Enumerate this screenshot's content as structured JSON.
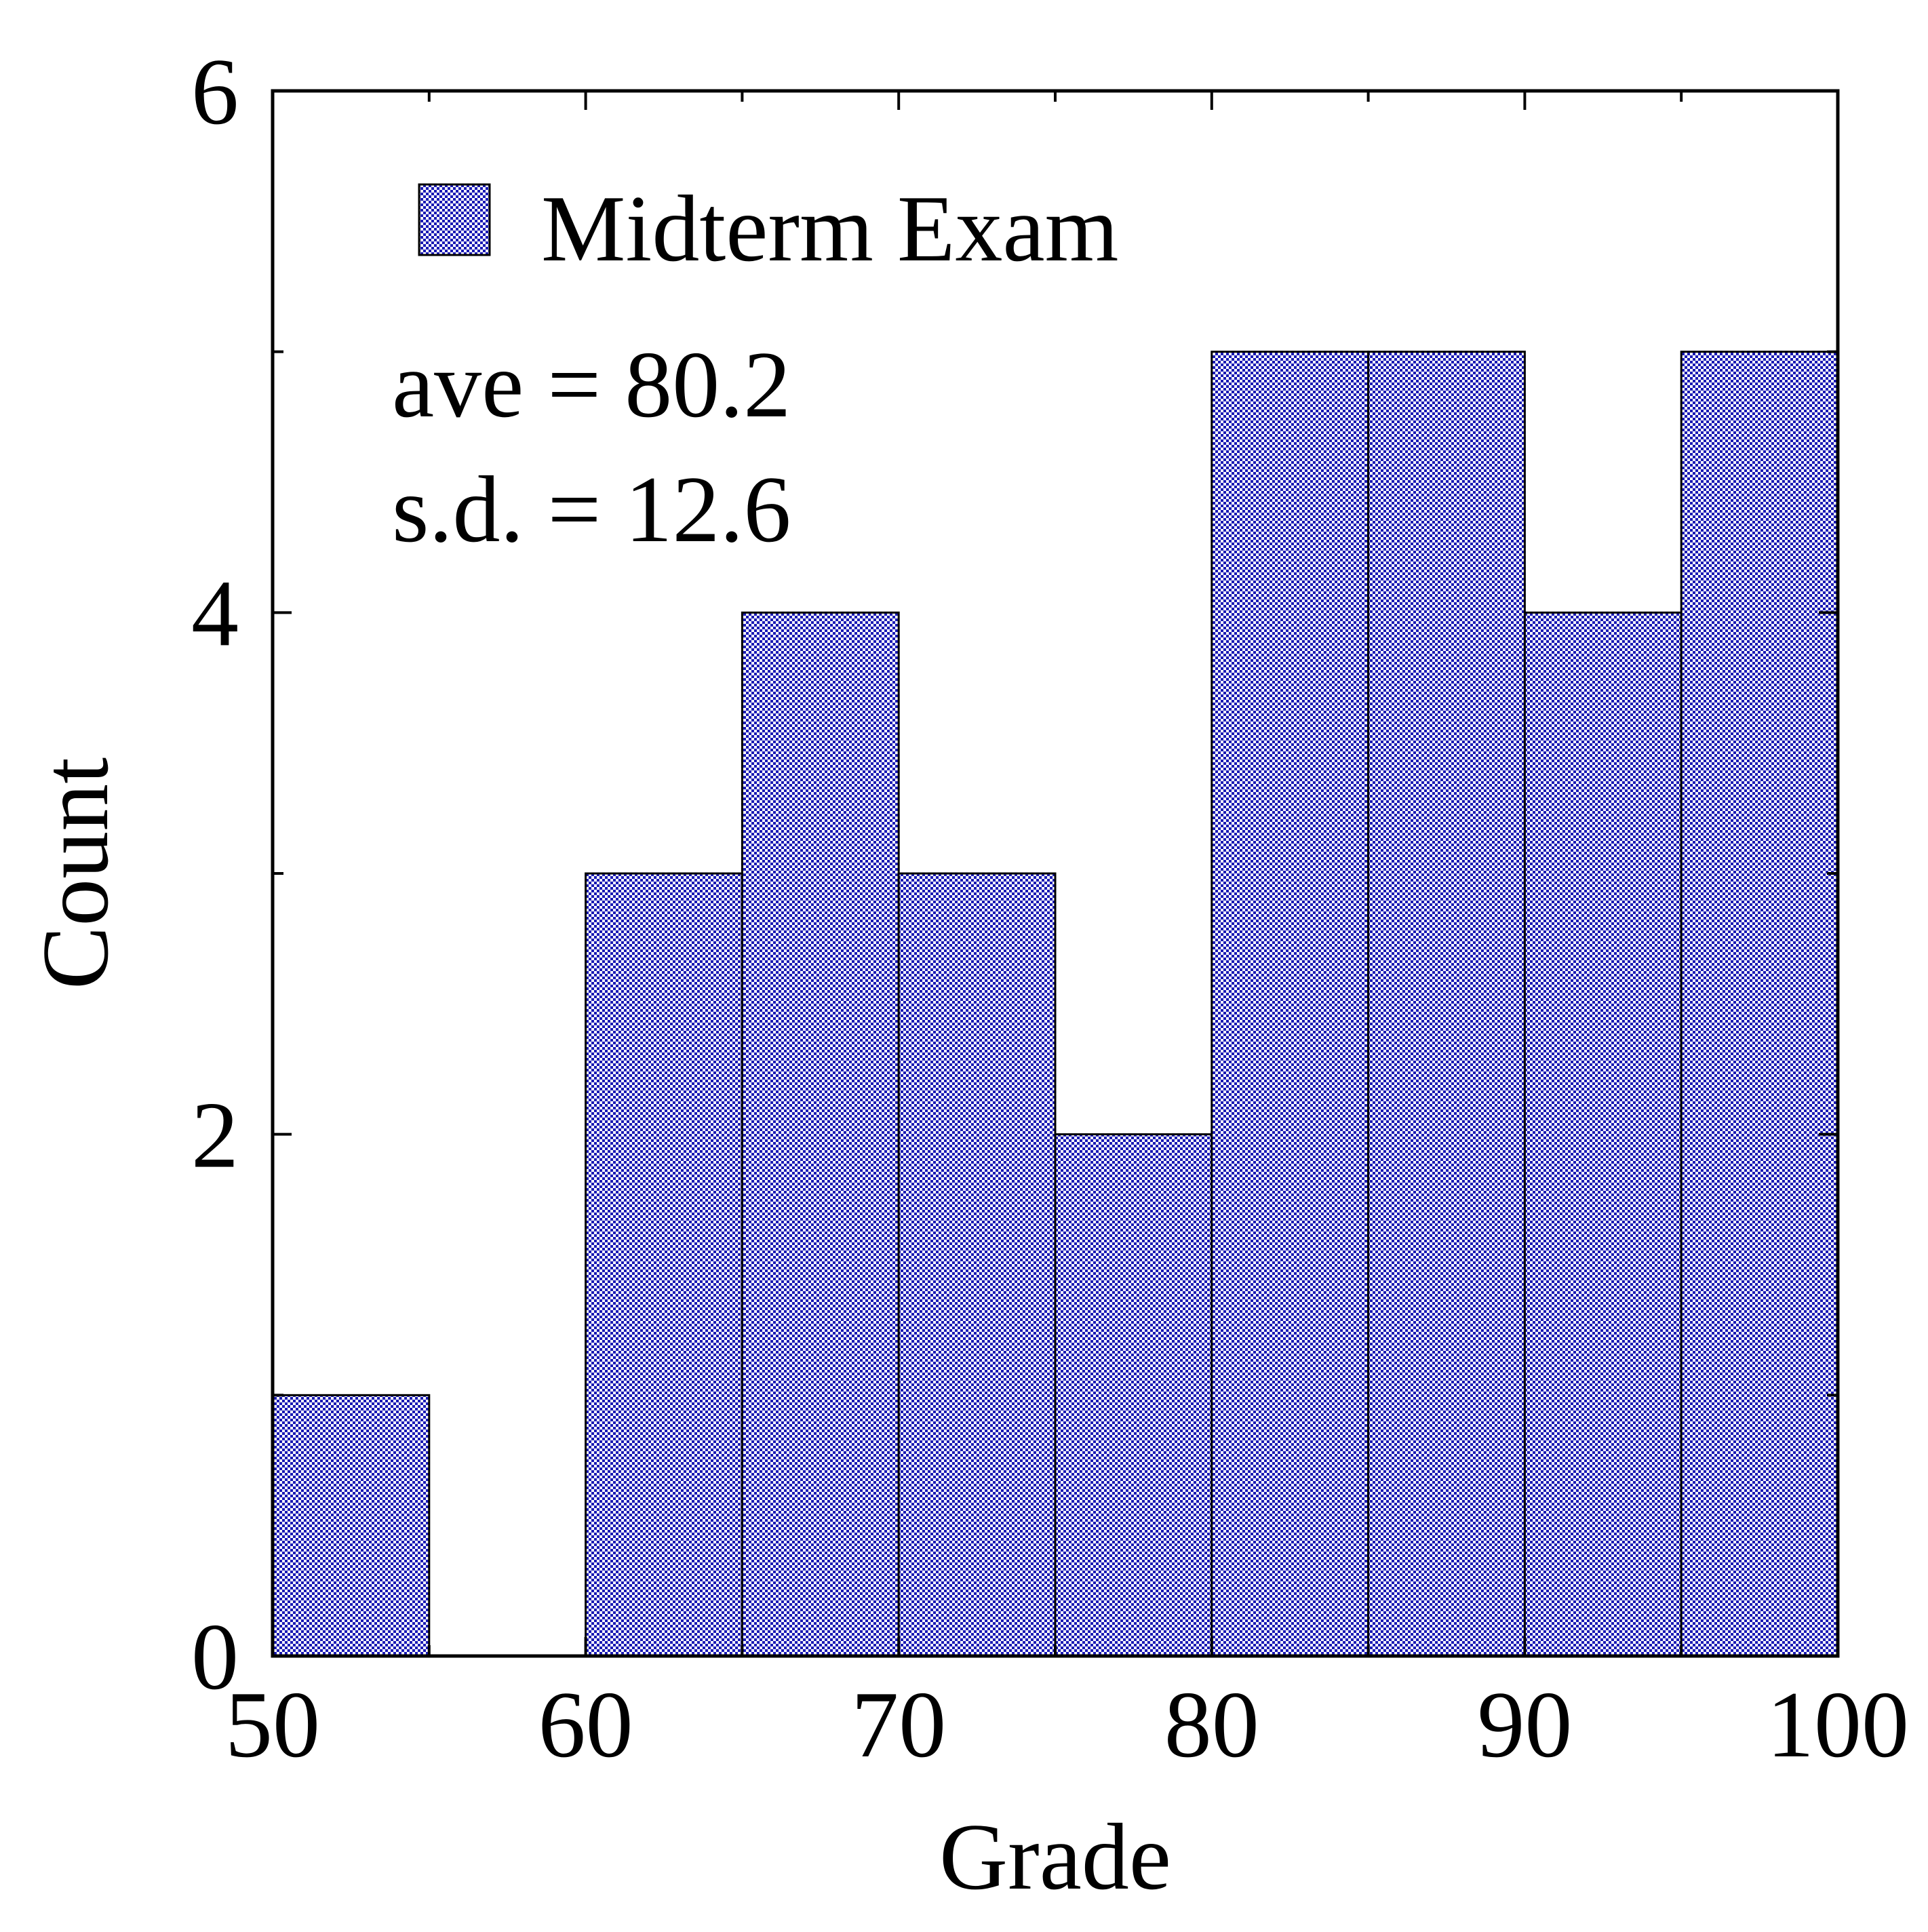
{
  "chart_data": {
    "type": "bar",
    "title": "",
    "xlabel": "Grade",
    "ylabel": "Count",
    "xlim": [
      50,
      100
    ],
    "ylim": [
      0,
      6
    ],
    "x_ticks": [
      "50",
      "60",
      "70",
      "80",
      "90",
      "100"
    ],
    "y_ticks": [
      "0",
      "2",
      "4",
      "6"
    ],
    "bins": [
      50,
      55,
      60,
      65,
      70,
      75,
      80,
      85,
      90,
      95,
      100
    ],
    "categories": [
      "50-55",
      "55-60",
      "60-65",
      "65-70",
      "70-75",
      "75-80",
      "80-85",
      "85-90",
      "90-95",
      "95-100"
    ],
    "series": [
      {
        "name": "Midterm Exam",
        "values": [
          1,
          0,
          3,
          4,
          3,
          2,
          5,
          5,
          4,
          5
        ]
      }
    ],
    "annotations": [
      "ave = 80.2",
      "s.d. = 12.6"
    ],
    "legend_position": "top-left",
    "grid": false,
    "fill_pattern": "checkerboard",
    "colors": {
      "bar_fill": "#1a1ab4",
      "bar_fill_light": "#ffffff",
      "axis": "#000000"
    }
  }
}
